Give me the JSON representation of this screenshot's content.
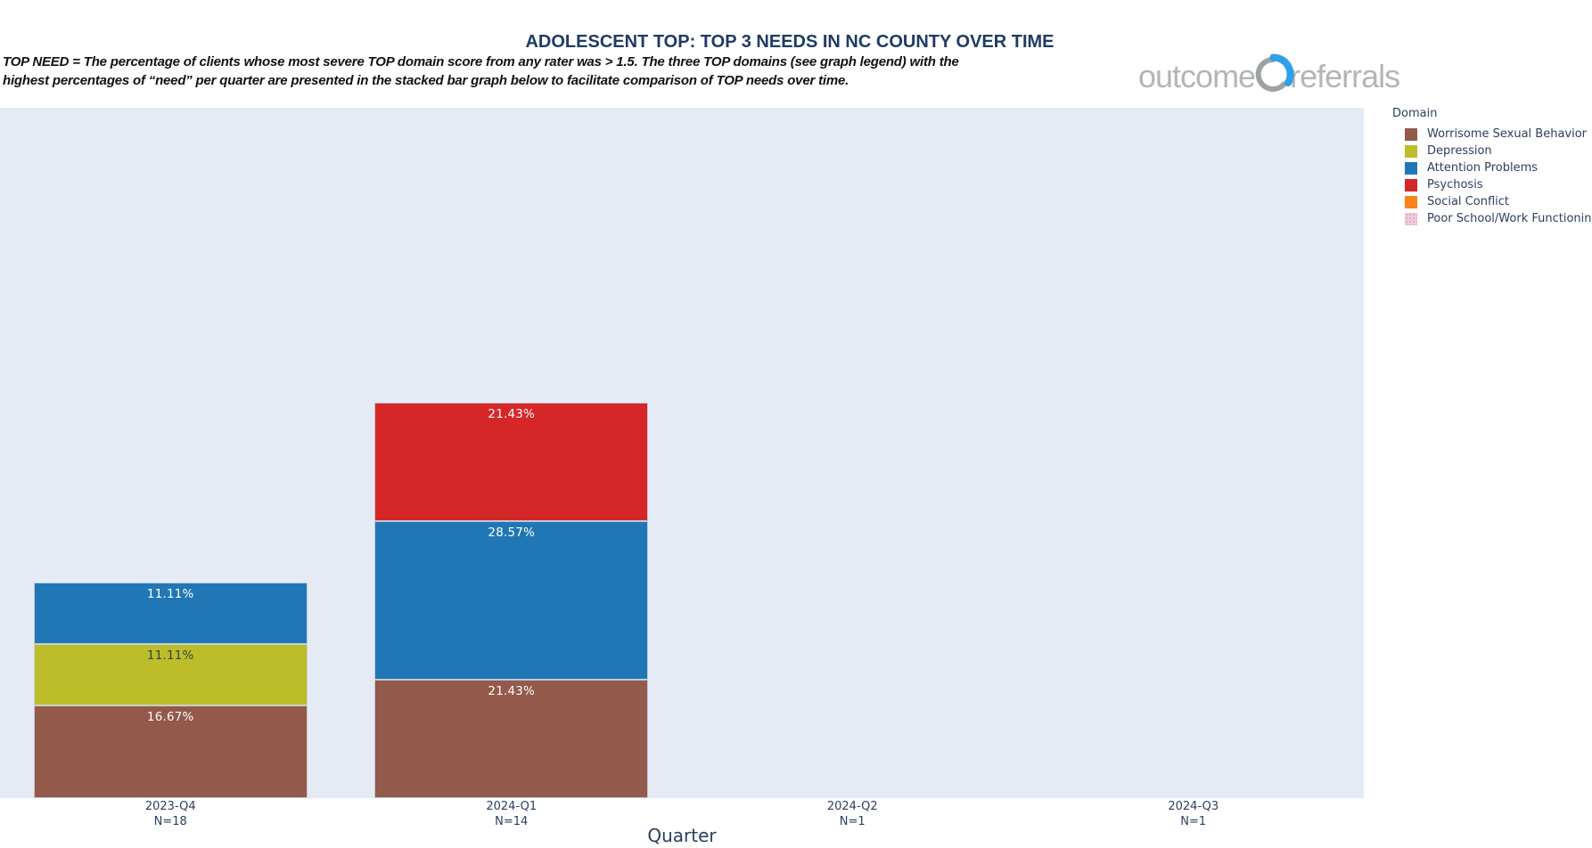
{
  "header": {
    "title": "ADOLESCENT TOP: TOP 3 NEEDS IN NC COUNTY OVER TIME",
    "subtitle_line1": "TOP NEED = The percentage of clients whose most severe TOP domain score from any rater was > 1.5.  The three TOP domains (see graph legend) with the",
    "subtitle_line2": "highest percentages of “need” per quarter are presented in the stacked bar graph below to facilitate comparison of TOP needs over time."
  },
  "logo": {
    "left_text": "outcome",
    "right_text": "referrals",
    "text_color": "#b3b5b7",
    "arc_blue": "#2f9fe8",
    "arc_gray": "#9fa2a4"
  },
  "legend": {
    "title": "Domain",
    "position": "right"
  },
  "chart_data": {
    "type": "bar",
    "stacked": true,
    "orientation": "vertical",
    "title": "ADOLESCENT TOP: TOP 3 NEEDS IN NC COUNTY OVER TIME",
    "xlabel": "Quarter",
    "ylabel": "",
    "y_unit": "percent",
    "grid": false,
    "plot_background": "#e5ebf5",
    "font_color": "#2a3f5f",
    "categories": [
      "2023-Q4",
      "2024-Q1",
      "2024-Q2",
      "2024-Q3"
    ],
    "n_labels": [
      "N=18",
      "N=14",
      "N=1",
      "N=1"
    ],
    "series": [
      {
        "name": "Worrisome Sexual Behavior",
        "color": "#93594b",
        "label_color": "#ffffff",
        "values": [
          16.67,
          21.43,
          0,
          0
        ],
        "value_labels": [
          "16.67%",
          "21.43%",
          "",
          ""
        ]
      },
      {
        "name": "Depression",
        "color": "#bcbd29",
        "label_color": "#3a3f44",
        "values": [
          11.11,
          0,
          0,
          0
        ],
        "value_labels": [
          "11.11%",
          "",
          "",
          ""
        ]
      },
      {
        "name": "Attention Problems",
        "color": "#2177b5",
        "label_color": "#ffffff",
        "values": [
          11.11,
          28.57,
          0,
          0
        ],
        "value_labels": [
          "11.11%",
          "28.57%",
          "",
          ""
        ]
      },
      {
        "name": "Psychosis",
        "color": "#d62728",
        "label_color": "#ffffff",
        "values": [
          0,
          21.43,
          0,
          0
        ],
        "value_labels": [
          "",
          "21.43%",
          "",
          ""
        ]
      },
      {
        "name": "Social Conflict",
        "color": "#fd8218",
        "label_color": "#ffffff",
        "values": [
          0,
          0,
          0,
          0
        ],
        "value_labels": [
          "",
          "",
          "",
          ""
        ]
      },
      {
        "name": "Poor School/Work Functioning",
        "color": "#efcbda",
        "pattern": "dots",
        "pattern_color": "#dca6be",
        "label_color": "#3a3f44",
        "values": [
          0,
          0,
          0,
          0
        ],
        "value_labels": [
          "",
          "",
          "",
          ""
        ]
      }
    ]
  }
}
